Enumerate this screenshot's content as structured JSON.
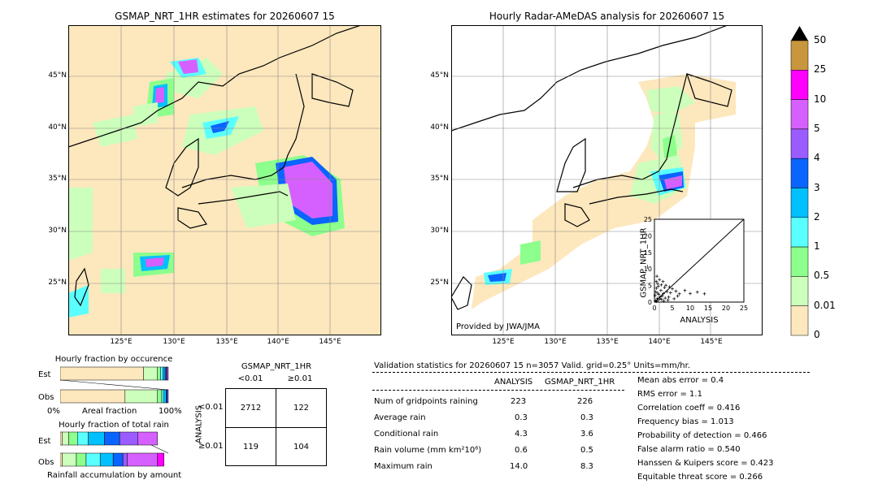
{
  "maps": {
    "left_title": "GSMAP_NRT_1HR estimates for 20260607 15",
    "right_title": "Hourly Radar-AMeDAS analysis for 20260607 15",
    "lat_labels": [
      "45°N",
      "40°N",
      "35°N",
      "30°N",
      "25°N"
    ],
    "lon_labels": [
      "125°E",
      "130°E",
      "135°E",
      "140°E",
      "145°E"
    ],
    "credit": "Provided by JWA/JMA"
  },
  "colorbar": {
    "levels": [
      "50",
      "25",
      "10",
      "5",
      "4",
      "3",
      "2",
      "1",
      "0.5",
      "0.01",
      "0"
    ],
    "colors": [
      "#c8963c",
      "#ff00ff",
      "#d660ff",
      "#9a5cff",
      "#0a64ff",
      "#00c0ff",
      "#5affff",
      "#8cff8c",
      "#ccffbb",
      "#fde7bd"
    ]
  },
  "scatter": {
    "xlabel": "ANALYSIS",
    "ylabel": "GSMAP_NRT_1HR",
    "ticks": [
      "0",
      "5",
      "10",
      "15",
      "20",
      "25"
    ]
  },
  "fraction_occurrence": {
    "title": "Hourly fraction by occurence",
    "row_est": "Est",
    "row_obs": "Obs",
    "axis_left": "0%",
    "axis_mid": "Areal fraction",
    "axis_right": "100%"
  },
  "fraction_total": {
    "title": "Hourly fraction of total rain",
    "row_est": "Est",
    "row_obs": "Obs",
    "axis_label": "Rainfall accumulation by amount"
  },
  "contingency": {
    "title": "GSMAP_NRT_1HR",
    "col_lt": "<0.01",
    "col_ge": "≥0.01",
    "side_label": "ANALYSIS",
    "row_lt": "<0.01",
    "row_ge": "≥0.01",
    "cells": [
      "2712",
      "122",
      "119",
      "104"
    ]
  },
  "validation": {
    "header": "Validation statistics for 20260607 15  n=3057 Valid. grid=0.25° Units=mm/hr.",
    "col_analysis": "ANALYSIS",
    "col_gsmap": "GSMAP_NRT_1HR",
    "rows": [
      {
        "label": "Num of gridpoints raining",
        "analysis": "223",
        "gsmap": "226"
      },
      {
        "label": "Average rain",
        "analysis": "0.3",
        "gsmap": "0.3"
      },
      {
        "label": "Conditional rain",
        "analysis": "4.3",
        "gsmap": "3.6"
      },
      {
        "label": "Rain volume (mm km²10⁶)",
        "analysis": "0.6",
        "gsmap": "0.5"
      },
      {
        "label": "Maximum rain",
        "analysis": "14.0",
        "gsmap": "8.3"
      }
    ],
    "scores": [
      "Mean abs error =    0.4",
      "RMS error =    1.1",
      "Correlation coeff =  0.416",
      "Frequency bias =  1.013",
      "Probability of detection =  0.466",
      "False alarm ratio =  0.540",
      "Hanssen & Kuipers score =  0.423",
      "Equitable threat score =  0.266"
    ]
  },
  "chart_data": {
    "type": "scatter",
    "title": "",
    "xlabel": "ANALYSIS",
    "ylabel": "GSMAP_NRT_1HR",
    "xlim": [
      0,
      25
    ],
    "ylim": [
      0,
      25
    ],
    "points": [
      [
        0.3,
        0.4
      ],
      [
        0.5,
        0.2
      ],
      [
        0.8,
        1.1
      ],
      [
        1.0,
        0.6
      ],
      [
        1.2,
        2.3
      ],
      [
        1.5,
        1.0
      ],
      [
        0.4,
        3.1
      ],
      [
        2.0,
        0.8
      ],
      [
        2.2,
        1.9
      ],
      [
        0.6,
        4.2
      ],
      [
        1.8,
        3.5
      ],
      [
        2.5,
        2.6
      ],
      [
        3.0,
        1.2
      ],
      [
        0.9,
        5.6
      ],
      [
        1.4,
        6.8
      ],
      [
        2.8,
        4.4
      ],
      [
        3.5,
        3.2
      ],
      [
        4.0,
        1.5
      ],
      [
        0.2,
        2.0
      ],
      [
        1.1,
        4.8
      ],
      [
        3.2,
        5.1
      ],
      [
        4.5,
        2.8
      ],
      [
        5.0,
        4.0
      ],
      [
        0.7,
        7.8
      ],
      [
        2.4,
        6.2
      ],
      [
        6.0,
        3.3
      ],
      [
        7.0,
        2.5
      ],
      [
        5.5,
        1.0
      ],
      [
        8.5,
        3.5
      ],
      [
        10.0,
        2.6
      ],
      [
        12.0,
        3.0
      ],
      [
        14.0,
        2.5
      ],
      [
        3.8,
        0.6
      ],
      [
        2.6,
        0.3
      ],
      [
        1.6,
        1.6
      ],
      [
        0.9,
        2.7
      ],
      [
        4.2,
        4.6
      ],
      [
        6.5,
        1.8
      ],
      [
        0.5,
        6.2
      ],
      [
        1.9,
        5.2
      ]
    ]
  }
}
